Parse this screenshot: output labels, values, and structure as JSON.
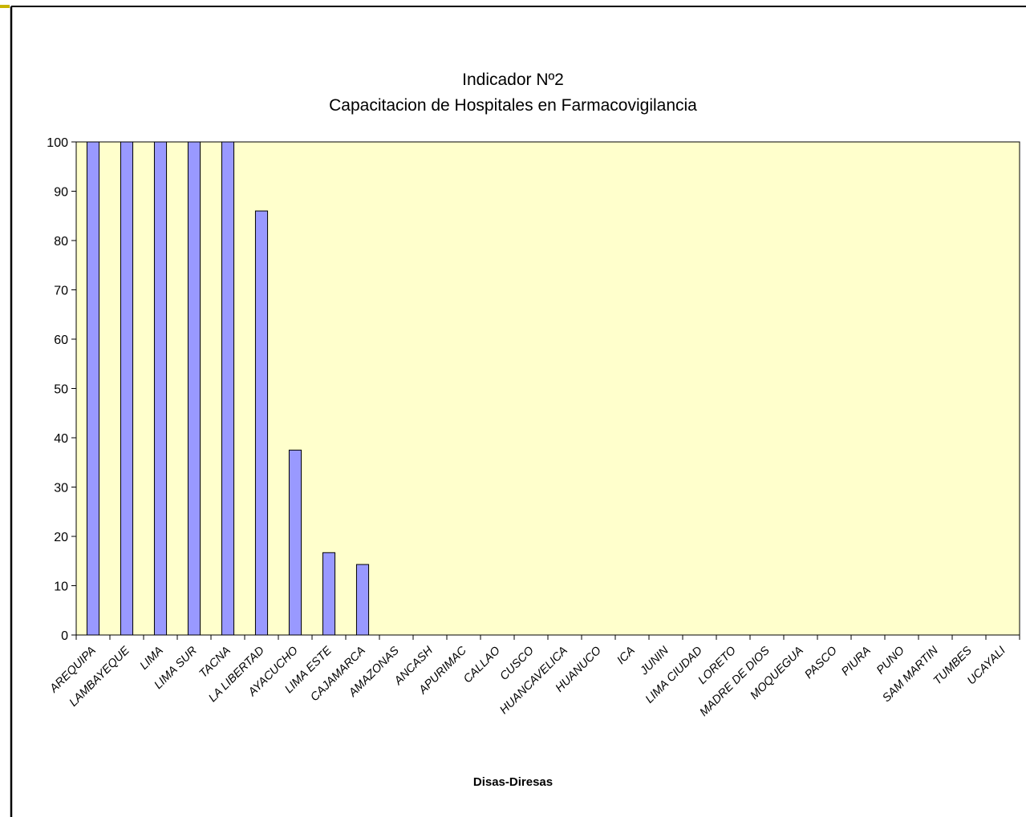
{
  "chart_data": {
    "type": "bar",
    "title": "Indicador Nº2",
    "subtitle": "Capacitacion de Hospitales en Farmacovigilancia",
    "xlabel": "Disas-Diresas",
    "ylabel": "",
    "ylim": [
      0,
      100
    ],
    "yticks": [
      0,
      10,
      20,
      30,
      40,
      50,
      60,
      70,
      80,
      90,
      100
    ],
    "grid": false,
    "legend": "none",
    "categories": [
      "AREQUIPA",
      "LAMBAYEQUE",
      "LIMA",
      "LIMA SUR",
      "TACNA",
      "LA LIBERTAD",
      "AYACUCHO",
      "LIMA  ESTE",
      "CAJAMARCA",
      "AMAZONAS",
      "ANCASH",
      "APURIMAC",
      "CALLAO",
      "CUSCO",
      "HUANCAVELICA",
      "HUANUCO",
      "ICA",
      "JUNIN",
      "LIMA CIUDAD",
      "LORETO",
      "MADRE DE DIOS",
      "MOQUEGUA",
      "PASCO",
      "PIURA",
      "PUNO",
      "SAM MARTIN",
      "TUMBES",
      "UCAYALI"
    ],
    "values": [
      100,
      100,
      100,
      100,
      100,
      86,
      37.5,
      16.7,
      14.3,
      0,
      0,
      0,
      0,
      0,
      0,
      0,
      0,
      0,
      0,
      0,
      0,
      0,
      0,
      0,
      0,
      0,
      0,
      0
    ],
    "colors": {
      "bar_fill": "#9999ff",
      "bar_stroke": "#000000",
      "plot_background": "#ffffcc",
      "frame": "#000000",
      "accent": "#c8b400"
    }
  }
}
